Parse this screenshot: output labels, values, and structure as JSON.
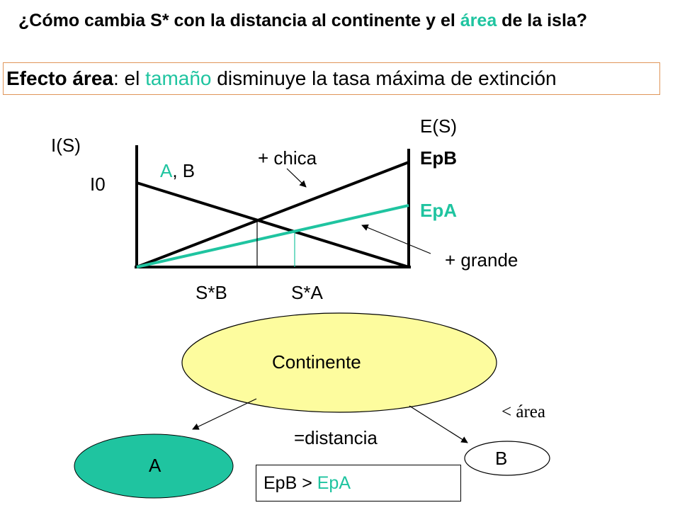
{
  "title": {
    "part1": "¿Cómo cambia S* con la distancia al continente y el ",
    "highlight": "área",
    "part2": " de la isla?"
  },
  "effect": {
    "bold": "Efecto área",
    "text1": ": el ",
    "highlight": "tamaño",
    "text2": " disminuye la tasa máxima de extinción"
  },
  "graph": {
    "i_axis": "I(S)",
    "e_axis": "E(S)",
    "i0": "I0",
    "ab_teal": "A",
    "ab_rest": ", B",
    "chica": "+ chica",
    "grande": "+ grande",
    "epb": "EpB",
    "epa": "EpA",
    "sb": "S*B",
    "sa": "S*A"
  },
  "diagram": {
    "continent": "Continente",
    "island_a": "A",
    "island_b": "B",
    "less_area": "< área",
    "distance": "=distancia"
  },
  "comparison": {
    "left": "EpB > ",
    "right": "EpA"
  },
  "colors": {
    "teal": "#1fc4a0",
    "continent_fill": "#fdfc9e",
    "box_border": "#e0965a"
  }
}
